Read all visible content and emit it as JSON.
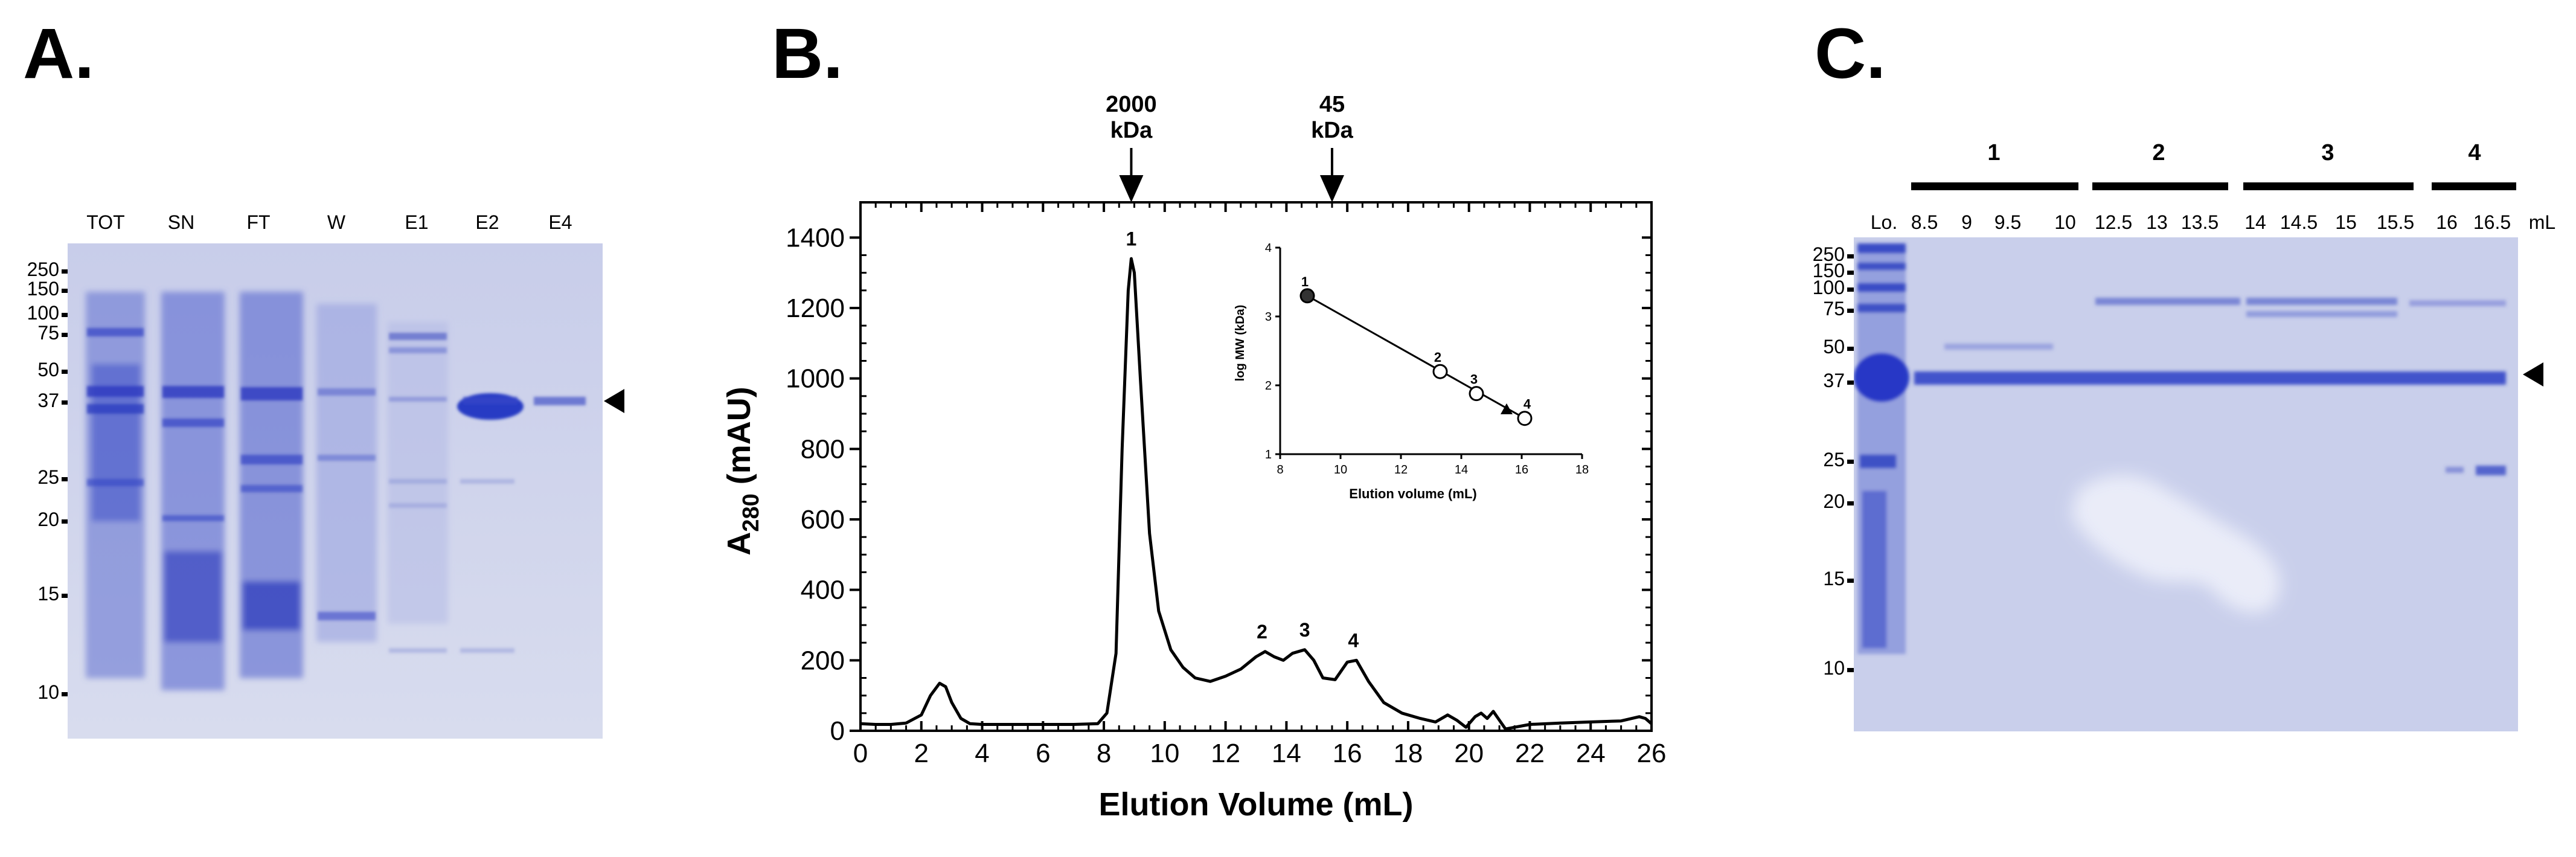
{
  "panels": {
    "A": {
      "letter": "A.",
      "lanes": [
        "TOT",
        "SN",
        "FT",
        "W",
        "E1",
        "E2",
        "E4"
      ],
      "markers": [
        "250",
        "150",
        "100",
        "75",
        "50",
        "37",
        "25",
        "20",
        "15",
        "10"
      ]
    },
    "B": {
      "letter": "B."
    },
    "C": {
      "letter": "C.",
      "groups": [
        "1",
        "2",
        "3",
        "4"
      ],
      "lanes": [
        "Lo.",
        "8.5",
        "9",
        "9.5",
        "10",
        "12.5",
        "13",
        "13.5",
        "14",
        "14.5",
        "15",
        "15.5",
        "16",
        "16.5"
      ],
      "unit": "mL",
      "markers": [
        "250",
        "150",
        "100",
        "75",
        "50",
        "37",
        "25",
        "20",
        "15",
        "10"
      ]
    }
  },
  "chart_data": [
    {
      "type": "line",
      "xlabel": "Elution Volume (mL)",
      "ylabel_main": "A",
      "ylabel_sub": "280",
      "ylabel_unit": " (mAU)",
      "xlim": [
        0,
        26
      ],
      "ylim": [
        0,
        1500
      ],
      "xticks": [
        "0",
        "2",
        "4",
        "6",
        "8",
        "10",
        "12",
        "14",
        "16",
        "18",
        "20",
        "22",
        "24",
        "26"
      ],
      "yticks": [
        "0",
        "200",
        "400",
        "600",
        "800",
        "1000",
        "1200",
        "1400"
      ],
      "markers": [
        {
          "kda_value": "2000",
          "kda_unit": "kDa",
          "x": 8.9
        },
        {
          "kda_value": "45",
          "kda_unit": "kDa",
          "x": 15.5
        }
      ],
      "peak_labels": [
        {
          "label": "1",
          "x": 8.9,
          "y": 1340
        },
        {
          "label": "2",
          "x": 13.2,
          "y": 225
        },
        {
          "label": "3",
          "x": 14.6,
          "y": 230
        },
        {
          "label": "4",
          "x": 16.2,
          "y": 200
        }
      ],
      "series": [
        {
          "x": [
            0,
            0.5,
            1.0,
            1.5,
            2.0,
            2.3,
            2.6,
            2.8,
            3.0,
            3.3,
            3.6,
            4.0,
            5.0,
            6.0,
            7.0,
            7.8,
            8.1,
            8.4,
            8.6,
            8.8,
            8.9,
            9.0,
            9.2,
            9.5,
            9.8,
            10.2,
            10.6,
            11.0,
            11.5,
            12.0,
            12.5,
            13.0,
            13.3,
            13.6,
            13.9,
            14.2,
            14.6,
            14.9,
            15.2,
            15.6,
            16.0,
            16.3,
            16.7,
            17.2,
            17.8,
            18.4,
            18.9,
            19.3,
            19.6,
            19.9,
            20.2,
            20.4,
            20.6,
            20.8,
            21.0,
            21.2,
            21.5,
            22.0,
            23.0,
            24.0,
            25.0,
            25.6,
            25.8,
            26.0
          ],
          "y": [
            20,
            18,
            18,
            22,
            45,
            100,
            135,
            125,
            80,
            35,
            20,
            18,
            18,
            18,
            18,
            20,
            50,
            220,
            800,
            1250,
            1340,
            1300,
            1000,
            560,
            340,
            230,
            180,
            150,
            140,
            155,
            175,
            210,
            225,
            210,
            200,
            220,
            230,
            200,
            150,
            145,
            195,
            200,
            140,
            80,
            50,
            35,
            25,
            45,
            30,
            10,
            40,
            50,
            35,
            55,
            30,
            5,
            10,
            18,
            22,
            25,
            28,
            40,
            35,
            20
          ]
        }
      ]
    },
    {
      "type": "scatter",
      "title": "",
      "xlabel": "Elution volume (mL)",
      "ylabel": "log MW (kDa)",
      "xlim": [
        8,
        18
      ],
      "ylim": [
        1,
        4
      ],
      "xticks": [
        "8",
        "10",
        "12",
        "14",
        "16",
        "18"
      ],
      "yticks": [
        "1",
        "2",
        "3",
        "4"
      ],
      "points": [
        {
          "label": "1",
          "x": 8.9,
          "y": 3.3
        },
        {
          "label": "2",
          "x": 13.3,
          "y": 2.2
        },
        {
          "label": "3",
          "x": 14.5,
          "y": 1.88
        },
        {
          "label": "4",
          "x": 16.1,
          "y": 1.52
        }
      ],
      "triangle_point": {
        "x": 15.5,
        "y": 1.65
      },
      "fit_line": {
        "x": [
          8.9,
          16.1
        ],
        "y": [
          3.3,
          1.52
        ]
      }
    }
  ]
}
